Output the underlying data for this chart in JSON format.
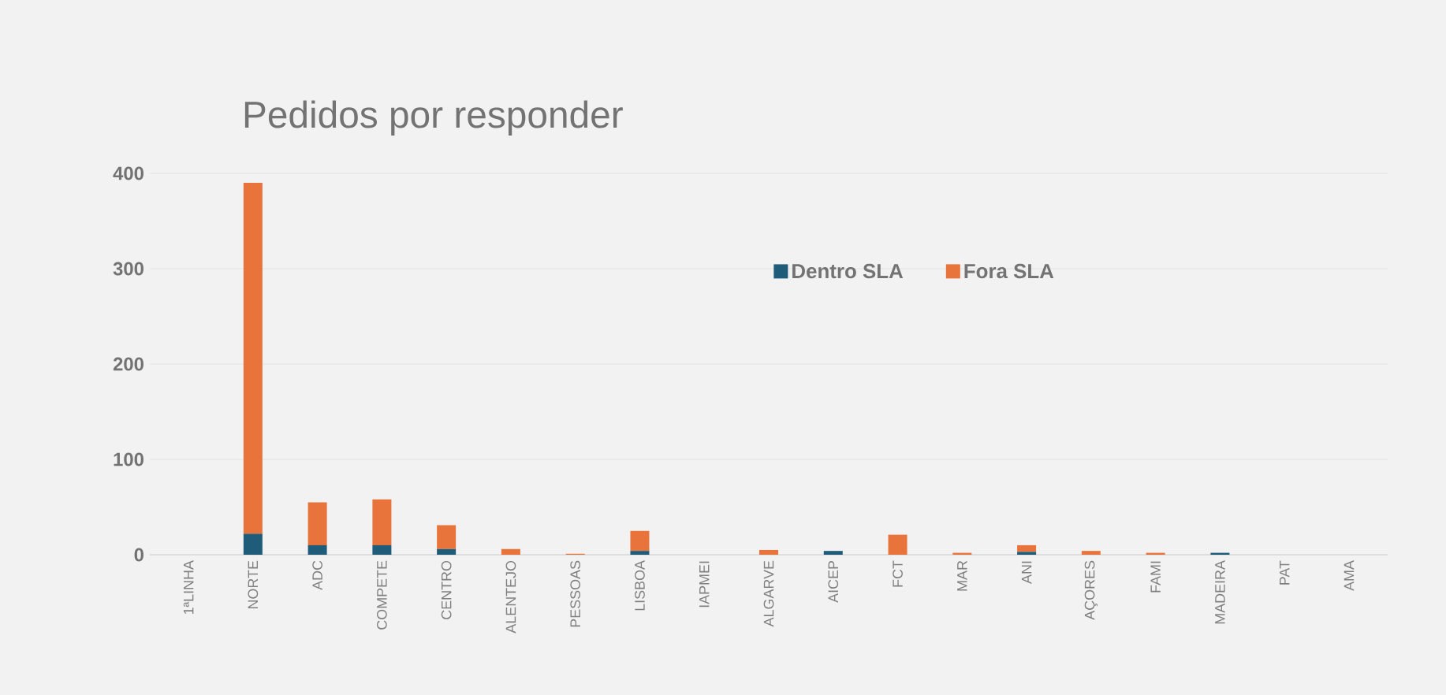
{
  "chart_data": {
    "type": "bar",
    "title": "Pedidos por responder",
    "stacked": true,
    "categories": [
      "1ªLINHA",
      "NORTE",
      "ADC",
      "COMPETE",
      "CENTRO",
      "ALENTEJO",
      "PESSOAS",
      "LISBOA",
      "IAPMEI",
      "ALGARVE",
      "AICEP",
      "FCT",
      "MAR",
      "ANI",
      "AÇORES",
      "FAMI",
      "MADEIRA",
      "PAT",
      "AMA"
    ],
    "series": [
      {
        "name": "Dentro SLA",
        "color": "#1f5c7a",
        "values": [
          0,
          22,
          10,
          10,
          6,
          0,
          0,
          4,
          0,
          0,
          4,
          0,
          0,
          3,
          0,
          0,
          2,
          0,
          0
        ]
      },
      {
        "name": "Fora SLA",
        "color": "#e8743b",
        "values": [
          0,
          368,
          45,
          48,
          25,
          6,
          1,
          21,
          0,
          5,
          0,
          21,
          2,
          7,
          4,
          2,
          0,
          0,
          0
        ]
      }
    ],
    "ylim": [
      0,
      400
    ],
    "yticks": [
      0,
      100,
      200,
      300,
      400
    ],
    "grid": "y",
    "legend": "top right"
  }
}
